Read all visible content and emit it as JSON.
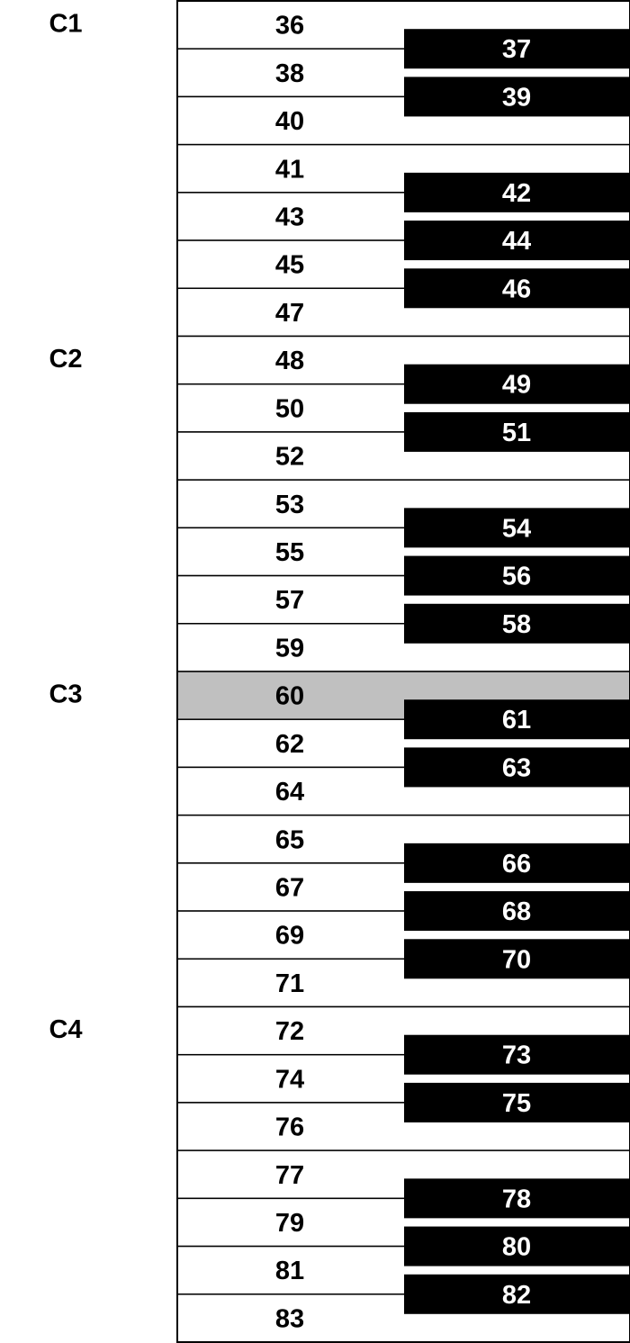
{
  "white_keys": [
    "36",
    "38",
    "40",
    "41",
    "43",
    "45",
    "47",
    "48",
    "50",
    "52",
    "53",
    "55",
    "57",
    "59",
    "60",
    "62",
    "64",
    "65",
    "67",
    "69",
    "71",
    "72",
    "74",
    "76",
    "77",
    "79",
    "81",
    "83"
  ],
  "black_keys": [
    {
      "label": "37",
      "after_white_index": 0
    },
    {
      "label": "39",
      "after_white_index": 1
    },
    {
      "label": "42",
      "after_white_index": 3
    },
    {
      "label": "44",
      "after_white_index": 4
    },
    {
      "label": "46",
      "after_white_index": 5
    },
    {
      "label": "49",
      "after_white_index": 7
    },
    {
      "label": "51",
      "after_white_index": 8
    },
    {
      "label": "54",
      "after_white_index": 10
    },
    {
      "label": "56",
      "after_white_index": 11
    },
    {
      "label": "58",
      "after_white_index": 12
    },
    {
      "label": "61",
      "after_white_index": 14
    },
    {
      "label": "63",
      "after_white_index": 15
    },
    {
      "label": "66",
      "after_white_index": 17
    },
    {
      "label": "68",
      "after_white_index": 18
    },
    {
      "label": "70",
      "after_white_index": 19
    },
    {
      "label": "73",
      "after_white_index": 21
    },
    {
      "label": "75",
      "after_white_index": 22
    },
    {
      "label": "78",
      "after_white_index": 24
    },
    {
      "label": "80",
      "after_white_index": 25
    },
    {
      "label": "82",
      "after_white_index": 26
    }
  ],
  "octave_labels": [
    {
      "label": "C1",
      "white_index": 0
    },
    {
      "label": "C2",
      "white_index": 7
    },
    {
      "label": "C3",
      "white_index": 14
    },
    {
      "label": "C4",
      "white_index": 21
    }
  ],
  "highlighted_white_index": 14,
  "colors": {
    "white_key": "#ffffff",
    "black_key": "#000000",
    "highlight": "#c0c0c0",
    "line": "#000000",
    "white_text": "#000000",
    "black_text": "#ffffff"
  }
}
